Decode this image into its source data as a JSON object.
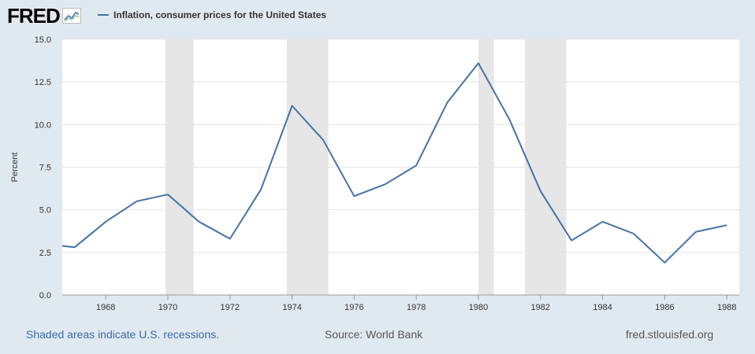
{
  "header": {
    "logo_text": "FRED",
    "logo_icon": "trend-chart-icon"
  },
  "chart_data": {
    "type": "line",
    "title": "",
    "legend": [
      "Inflation, consumer prices for the United States"
    ],
    "xlabel": "",
    "ylabel": "Percent",
    "xlim": [
      1966.6,
      1988.4
    ],
    "ylim": [
      0,
      15
    ],
    "x_ticks": [
      1968,
      1970,
      1972,
      1974,
      1976,
      1978,
      1980,
      1982,
      1984,
      1986,
      1988
    ],
    "y_ticks": [
      0,
      2.5,
      5,
      7.5,
      10,
      12.5,
      15
    ],
    "y_tick_labels": [
      "0.0",
      "2.5",
      "5.0",
      "7.5",
      "10.0",
      "12.5",
      "15.0"
    ],
    "grid": true,
    "legend_position": "top-left",
    "line_color": "#4572a7",
    "recession_color": "#e6e6e6",
    "recessions": [
      [
        1969.92,
        1970.83
      ],
      [
        1973.83,
        1975.17
      ],
      [
        1980.0,
        1980.5
      ],
      [
        1981.5,
        1982.83
      ]
    ],
    "series": [
      {
        "name": "Inflation, consumer prices for the United States",
        "x": [
          1966,
          1967,
          1968,
          1969,
          1970,
          1971,
          1972,
          1973,
          1974,
          1975,
          1976,
          1977,
          1978,
          1979,
          1980,
          1981,
          1982,
          1983,
          1984,
          1985,
          1986,
          1987,
          1988
        ],
        "y": [
          3.0,
          2.8,
          4.3,
          5.5,
          5.9,
          4.3,
          3.3,
          6.2,
          11.1,
          9.1,
          5.8,
          6.5,
          7.6,
          11.3,
          13.6,
          10.3,
          6.1,
          3.2,
          4.3,
          3.6,
          1.9,
          3.7,
          4.1
        ]
      }
    ]
  },
  "footer": {
    "recession_note": "Shaded areas indicate U.S. recessions.",
    "source": "Source: World Bank",
    "site": "fred.stlouisfed.org"
  }
}
